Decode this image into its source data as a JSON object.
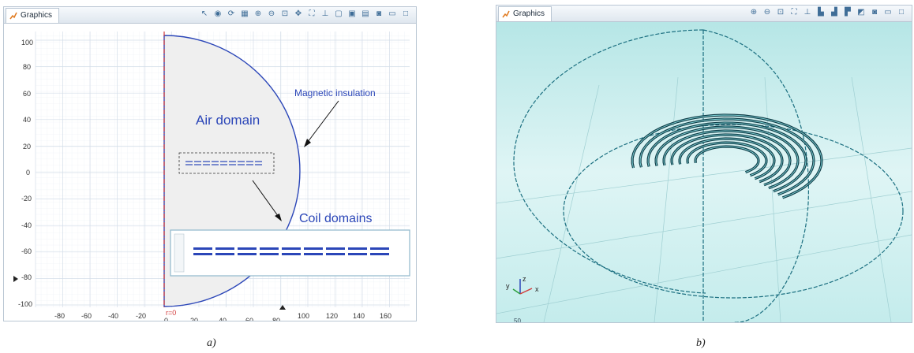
{
  "panel_a": {
    "tab_title": "Graphics",
    "y_ticks": [
      "100",
      "80",
      "60",
      "40",
      "20",
      "0",
      "-20",
      "-40",
      "-60",
      "-80",
      "-100"
    ],
    "x_ticks": [
      "-80",
      "-60",
      "-40",
      "-20",
      "0",
      "20",
      "40",
      "60",
      "80",
      "100",
      "120",
      "140",
      "160"
    ],
    "axis_marker": "r=0",
    "labels": {
      "air": "Air domain",
      "insulation": "Magnetic insulation",
      "coils": "Coil domains"
    },
    "caption": "a)"
  },
  "panel_b": {
    "tab_title": "Graphics",
    "axis_labels": {
      "x": "x",
      "y": "y",
      "z": "z"
    },
    "bottom_label": "50",
    "caption": "b)"
  },
  "colors": {
    "boundary": "#2b46b8",
    "symmetry_axis": "#d23a3a",
    "grid": "#dbe4ee",
    "teal_bg": "#cfeeee",
    "wire": "#1b6f80"
  },
  "icons": [
    "chart-icon",
    "zoom-icon",
    "camera-icon",
    "axis-icon"
  ]
}
